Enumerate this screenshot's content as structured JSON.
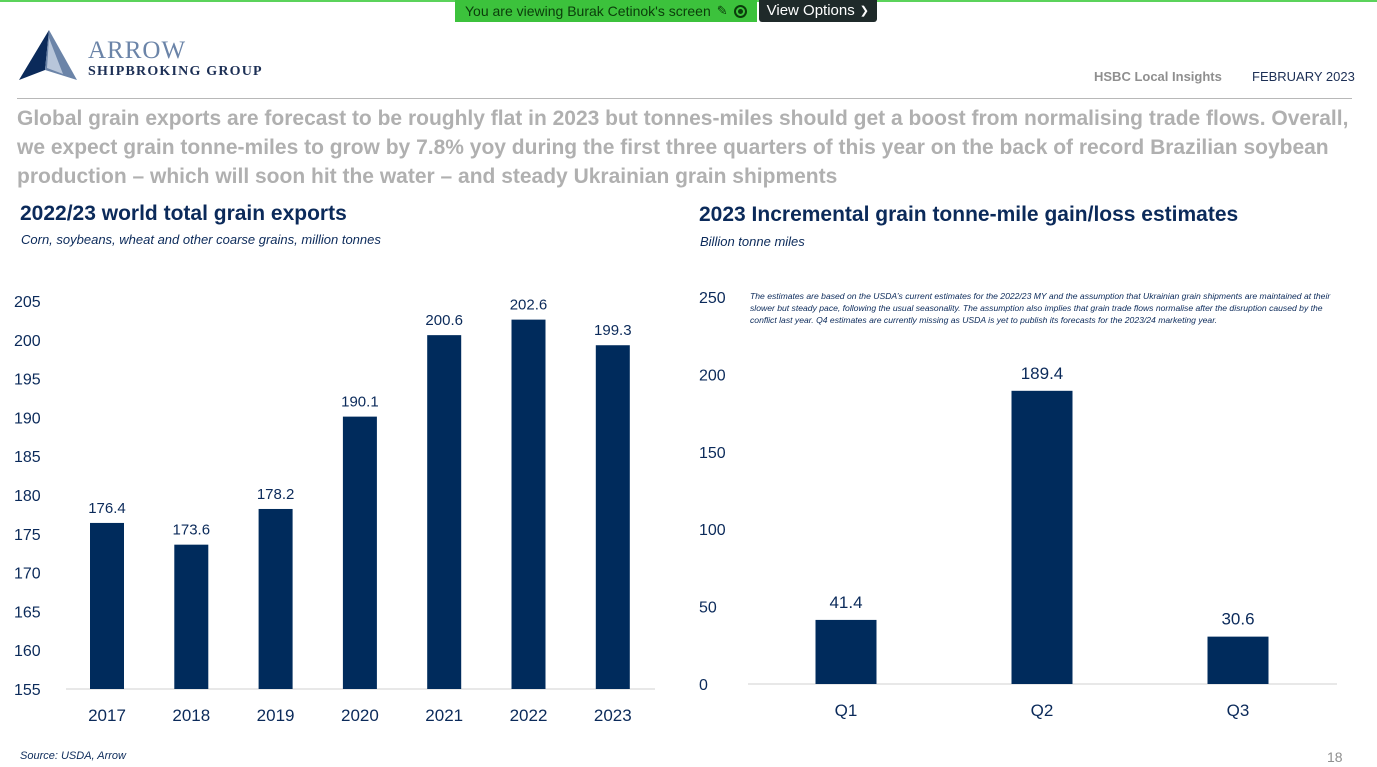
{
  "share_banner": {
    "message": "You are viewing Burak Cetinok's screen",
    "view_options": "View Options"
  },
  "brand": {
    "name_line1": "ARROW",
    "name_line2": "SHIPBROKING GROUP"
  },
  "header": {
    "tag": "HSBC Local Insights",
    "date": "FEBRUARY 2023"
  },
  "headline": "Global grain exports are forecast to be roughly flat in 2023 but tonnes-miles should get a boost from normalising trade flows. Overall, we expect grain tonne-miles to grow by 7.8% yoy during the first three quarters of this year on the back of record Brazilian soybean production – which will soon hit the water – and steady Ukrainian grain shipments",
  "footer": {
    "source": "Source: USDA, Arrow",
    "page": "18"
  },
  "colors": {
    "bar": "#002b5c",
    "headline": "#b0b0b0",
    "axis": "#d0d0d0"
  },
  "chart_data": [
    {
      "type": "bar",
      "title": "2022/23 world total grain exports",
      "subtitle": "Corn, soybeans, wheat and other coarse grains, million tonnes",
      "categories": [
        "2017",
        "2018",
        "2019",
        "2020",
        "2021",
        "2022",
        "2023"
      ],
      "values": [
        176.4,
        173.6,
        178.2,
        190.1,
        200.6,
        202.6,
        199.3
      ],
      "data_labels": [
        "176.4",
        "173.6",
        "178.2",
        "190.1",
        "200.6",
        "202.6",
        "199.3"
      ],
      "ylim": [
        155,
        205
      ],
      "yticks": [
        "155",
        "160",
        "165",
        "170",
        "175",
        "180",
        "185",
        "190",
        "195",
        "200",
        "205"
      ],
      "grid": false
    },
    {
      "type": "bar",
      "title": "2023 Incremental grain tonne-mile gain/loss estimates",
      "subtitle": "Billion tonne miles",
      "categories": [
        "Q1",
        "Q2",
        "Q3"
      ],
      "values": [
        41.4,
        189.4,
        30.6
      ],
      "data_labels": [
        "41.4",
        "189.4",
        "30.6"
      ],
      "ylim": [
        0,
        250
      ],
      "yticks": [
        "0",
        "50",
        "100",
        "150",
        "200",
        "250"
      ],
      "grid": false,
      "annotation": "The estimates are based on the USDA’s current estimates for the 2022/23 MY and the assumption that Ukrainian grain shipments are maintained at their slower but steady pace, following the usual seasonality. The assumption also implies that grain trade flows normalise after the disruption caused by the conflict last year.  Q4 estimates are currently missing as USDA is yet to publish its forecasts for  the 2023/24 marketing year."
    }
  ]
}
